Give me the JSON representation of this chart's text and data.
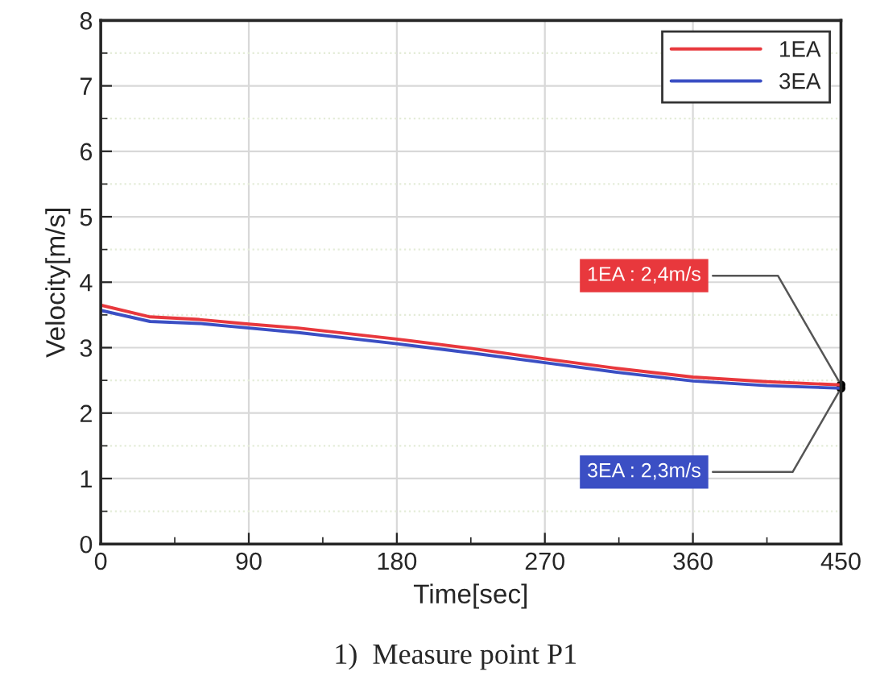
{
  "chart_data": {
    "type": "line",
    "xlabel": "Time[sec]",
    "ylabel": "Velocity[m/s]",
    "x": [
      0,
      30,
      60,
      90,
      120,
      180,
      225,
      270,
      315,
      360,
      405,
      450
    ],
    "series": [
      {
        "name": "1EA",
        "color": "#e8383d",
        "values": [
          3.65,
          3.47,
          3.43,
          3.36,
          3.3,
          3.13,
          2.99,
          2.83,
          2.68,
          2.55,
          2.48,
          2.43
        ]
      },
      {
        "name": "3EA",
        "color": "#3b4fc4",
        "values": [
          3.57,
          3.4,
          3.37,
          3.3,
          3.23,
          3.06,
          2.92,
          2.77,
          2.62,
          2.49,
          2.42,
          2.38
        ]
      }
    ],
    "xlim": [
      0,
      450
    ],
    "xticks": [
      0,
      90,
      180,
      270,
      360,
      450
    ],
    "ylim": [
      0,
      8
    ],
    "yticks": [
      0,
      1,
      2,
      3,
      4,
      5,
      6,
      7,
      8
    ],
    "grid": true,
    "legend": "top right",
    "marker": "none",
    "line_style": "solid",
    "annotations": [
      {
        "text": "1EA : 2,4m/s",
        "x": 450,
        "y": 2.43
      },
      {
        "text": "3EA : 2,3m/s",
        "x": 450,
        "y": 2.38
      },
      "1)  Measure point P1"
    ]
  }
}
